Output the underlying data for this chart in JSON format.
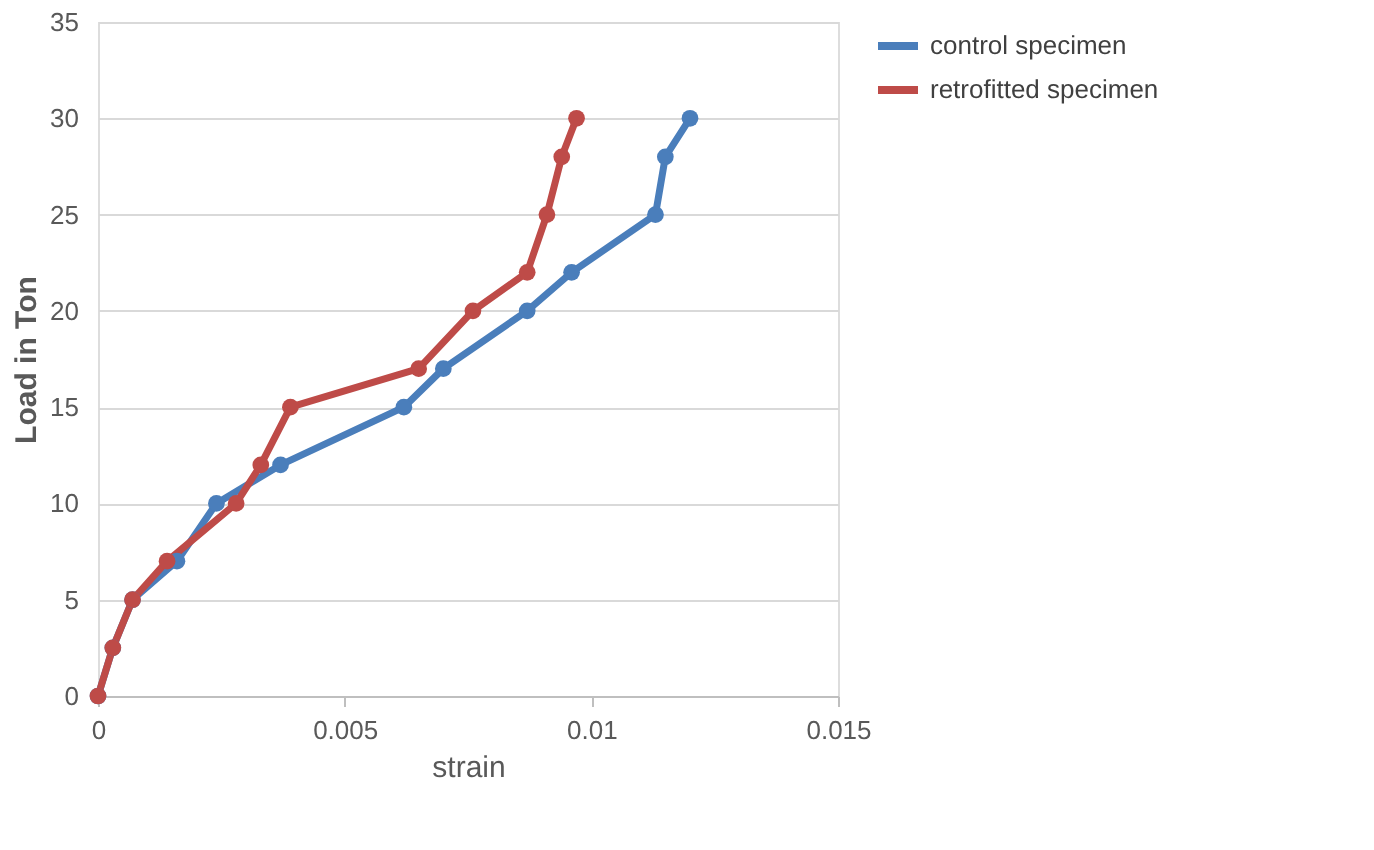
{
  "chart_data": {
    "type": "line",
    "xlabel": "strain",
    "ylabel": "Load in Ton",
    "xlim": [
      0,
      0.015
    ],
    "xticks": [
      0,
      0.005,
      0.01,
      0.015
    ],
    "ylim": [
      0,
      35
    ],
    "yticks": [
      0,
      5,
      10,
      15,
      20,
      25,
      30,
      35
    ],
    "grid": "y",
    "legend": "right",
    "marker": "circle",
    "line_style": "solid",
    "series": [
      {
        "name": "control specimen",
        "color": "#4a7ebb",
        "x": [
          0,
          0.0003,
          0.0007,
          0.0016,
          0.0024,
          0.0037,
          0.0062,
          0.007,
          0.0087,
          0.0096,
          0.0113,
          0.0115,
          0.012
        ],
        "values": [
          0,
          2.5,
          5,
          7,
          10,
          12,
          15,
          17,
          20,
          22,
          25,
          28,
          30
        ]
      },
      {
        "name": "retrofitted specimen",
        "color": "#be4b48",
        "x": [
          0,
          0.0003,
          0.0007,
          0.0014,
          0.0028,
          0.0033,
          0.0039,
          0.0065,
          0.0076,
          0.0087,
          0.0091,
          0.0094,
          0.0097
        ],
        "values": [
          0,
          2.5,
          5,
          7,
          10,
          12,
          15,
          17,
          20,
          22,
          25,
          28,
          30
        ]
      }
    ]
  }
}
